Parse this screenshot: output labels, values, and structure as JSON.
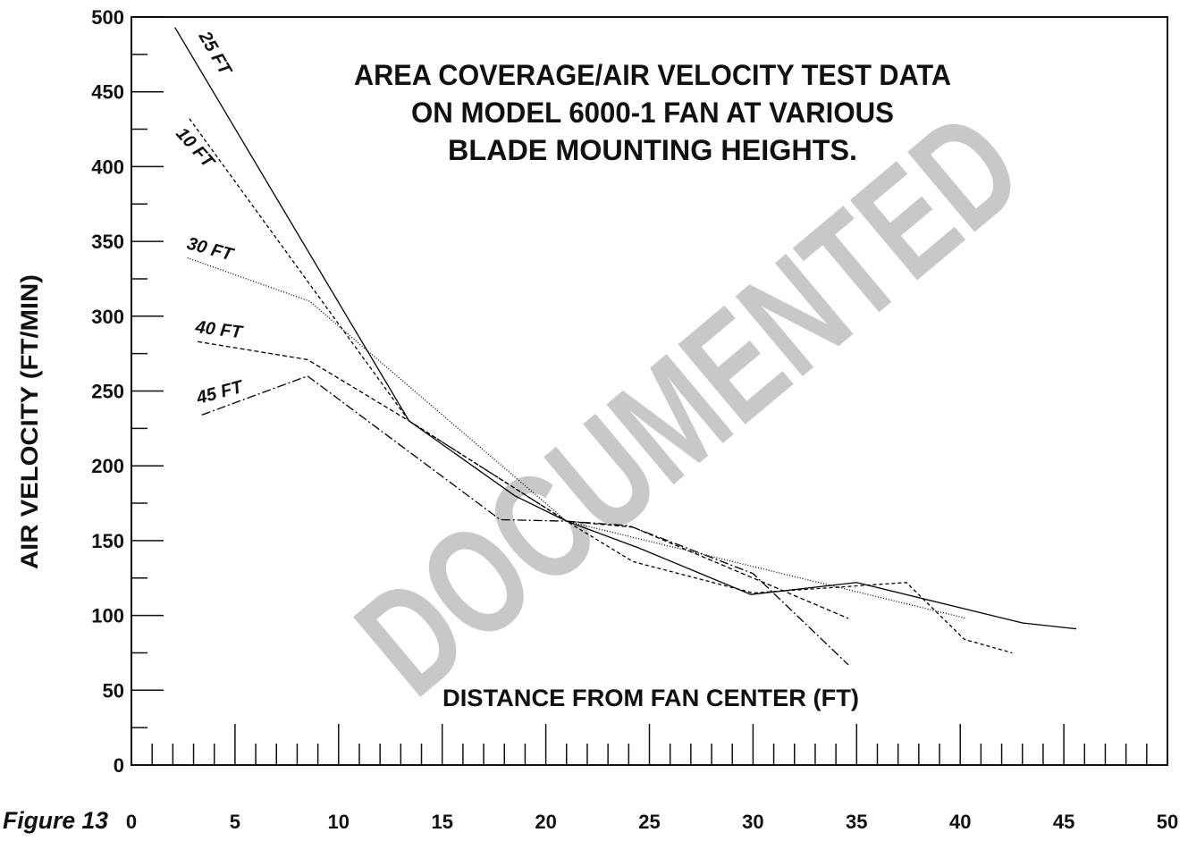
{
  "chart_data": {
    "type": "line",
    "title": [
      "AREA COVERAGE/AIR VELOCITY TEST DATA",
      "ON MODEL 6000-1 FAN AT VARIOUS",
      "BLADE MOUNTING HEIGHTS."
    ],
    "xlabel": "DISTANCE FROM FAN CENTER (FT)",
    "ylabel": "AIR VELOCITY (FT/MIN)",
    "caption": "Figure 13",
    "watermark": "DOCUMENTED",
    "xlim": [
      0,
      50
    ],
    "ylim": [
      0,
      500
    ],
    "xticks": [
      0,
      5,
      10,
      15,
      20,
      25,
      30,
      35,
      40,
      45,
      50
    ],
    "yticks": [
      0,
      50,
      100,
      150,
      200,
      250,
      300,
      350,
      400,
      450,
      500
    ],
    "xminorticks": [
      1,
      2,
      3,
      4,
      6,
      7,
      8,
      9,
      11,
      12,
      13,
      14,
      16,
      17,
      18,
      19,
      21,
      22,
      23,
      24,
      26,
      27,
      28,
      29,
      31,
      32,
      33,
      34,
      36,
      37,
      38,
      39,
      41,
      42,
      43,
      44,
      46,
      47,
      48,
      49
    ],
    "yminorticks": [
      25,
      75,
      125,
      175,
      225,
      275,
      325,
      375,
      425,
      475
    ],
    "series": [
      {
        "name": "25 FT",
        "color": "#000000",
        "dash": "none",
        "x": [
          2.1,
          13.4,
          18.5,
          21,
          24.5,
          29.9,
          35,
          43,
          45.6
        ],
        "values": [
          493,
          230,
          180,
          163,
          145,
          114,
          122,
          95,
          91
        ]
      },
      {
        "name": "10 FT",
        "color": "#000000",
        "dash": "4,3",
        "x": [
          2.8,
          13.4,
          21,
          24.2,
          30,
          37.4,
          40.2,
          42.5
        ],
        "values": [
          432,
          230,
          163,
          136,
          115,
          122,
          84,
          75
        ]
      },
      {
        "name": "30 FT",
        "color": "#000000",
        "dash": "1,2",
        "x": [
          2.7,
          8.6,
          21,
          40.3
        ],
        "values": [
          339,
          310,
          163,
          98
        ]
      },
      {
        "name": "40 FT",
        "color": "#000000",
        "dash": "5,3",
        "x": [
          3.2,
          8.5,
          13.4,
          21,
          24.2,
          30,
          34.6
        ],
        "values": [
          283,
          271,
          230,
          163,
          159,
          125,
          98
        ]
      },
      {
        "name": "45 FT",
        "color": "#000000",
        "dash": "10,3,2,3",
        "x": [
          3.4,
          8.5,
          17.8,
          21,
          24,
          30,
          34.6
        ],
        "values": [
          234,
          260,
          164,
          163,
          160,
          128,
          67
        ]
      }
    ]
  }
}
